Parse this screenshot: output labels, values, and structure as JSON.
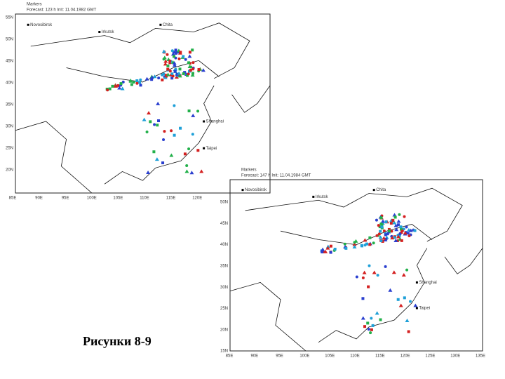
{
  "caption": "Рисунки 8-9",
  "maps": [
    {
      "header": "Markers",
      "subheader": "Forecast: 123 h   Init: 11.04.1982   GMT",
      "places": [
        "Novosibirsk",
        "Irkutsk",
        "Chita",
        "Shanghai",
        "Taipei"
      ],
      "lat_labels": [
        "55N",
        "50N",
        "45N",
        "40N",
        "35N",
        "30N",
        "25N",
        "20N"
      ],
      "lon_labels": [
        "85E",
        "90E",
        "95E",
        "100E",
        "105E",
        "110E",
        "115E",
        "120E"
      ]
    },
    {
      "header": "Markers",
      "subheader": "Forecast: 147 h   Init: 11.04.1984   GMT",
      "places": [
        "Novosibirsk",
        "Irkutsk",
        "Chita",
        "Shanghai",
        "Taipei"
      ],
      "lat_labels": [
        "50N",
        "45N",
        "40N",
        "35N",
        "30N",
        "25N",
        "20N",
        "15N"
      ],
      "lon_labels": [
        "85E",
        "90E",
        "95E",
        "100E",
        "105E",
        "110E",
        "115E",
        "120E",
        "125E",
        "130E",
        "135E"
      ]
    }
  ]
}
